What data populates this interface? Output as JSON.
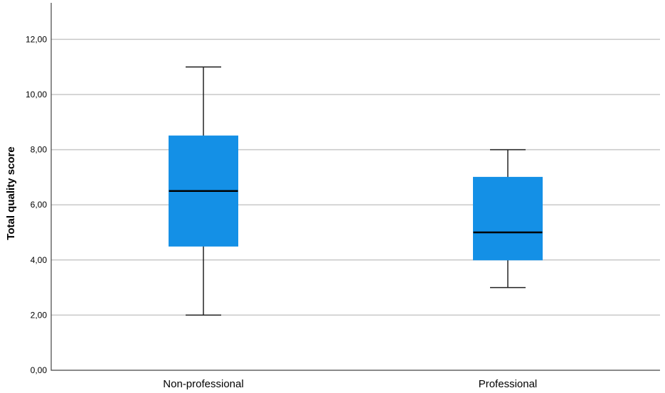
{
  "chart_data": {
    "type": "boxplot",
    "ylabel": "Total quality score",
    "xlabel": "",
    "ylim": [
      0,
      13.6
    ],
    "yticks": [
      0,
      2,
      4,
      6,
      8,
      10,
      12
    ],
    "ytick_labels": [
      "0,00",
      "2,00",
      "4,00",
      "6,00",
      "8,00",
      "10,00",
      "12,00"
    ],
    "grid": true,
    "box_color": "#1490e6",
    "categories": [
      "Non-professional",
      "Professional"
    ],
    "boxes": [
      {
        "category": "Non-professional",
        "min": 2,
        "q1": 4.5,
        "median": 6.5,
        "q3": 8.5,
        "max": 11
      },
      {
        "category": "Professional",
        "min": 3,
        "q1": 4,
        "median": 5,
        "q3": 7,
        "max": 8
      }
    ]
  }
}
